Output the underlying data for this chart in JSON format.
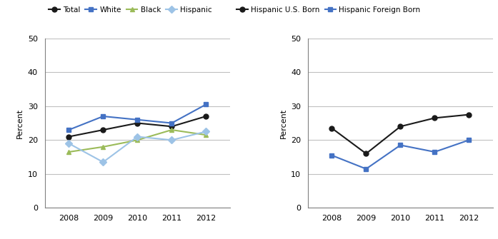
{
  "years": [
    2008,
    2009,
    2010,
    2011,
    2012
  ],
  "left_chart": {
    "Total": [
      21,
      23,
      25,
      24,
      27
    ],
    "White": [
      23,
      27,
      26,
      25,
      30.5
    ],
    "Black": [
      16.5,
      18,
      20,
      23,
      21.5
    ],
    "Hispanic": [
      19,
      13.5,
      21,
      20,
      22.5
    ]
  },
  "right_chart": {
    "Hispanic U.S. Born": [
      23.5,
      16,
      24,
      26.5,
      27.5
    ],
    "Hispanic Foreign Born": [
      15.5,
      11.5,
      18.5,
      16.5,
      20
    ]
  },
  "left_legend": [
    {
      "label": "Total",
      "color": "#1a1a1a",
      "marker": "o"
    },
    {
      "label": "White",
      "color": "#4472c4",
      "marker": "s"
    },
    {
      "label": "Black",
      "color": "#9bbb59",
      "marker": "^"
    },
    {
      "label": "Hispanic",
      "color": "#9dc3e6",
      "marker": "D"
    }
  ],
  "right_legend": [
    {
      "label": "Hispanic U.S. Born",
      "color": "#1a1a1a",
      "marker": "o"
    },
    {
      "label": "Hispanic Foreign Born",
      "color": "#4472c4",
      "marker": "s"
    }
  ],
  "ylabel": "Percent",
  "ylim": [
    0,
    50
  ],
  "yticks": [
    0,
    10,
    20,
    30,
    40,
    50
  ],
  "xticks": [
    2008,
    2009,
    2010,
    2011,
    2012
  ],
  "grid_color": "#c0c0c0",
  "bg_color": "#ffffff",
  "left_series_colors": [
    "#1a1a1a",
    "#4472c4",
    "#9bbb59",
    "#9dc3e6"
  ],
  "left_series_markers": [
    "o",
    "s",
    "^",
    "D"
  ],
  "right_series_colors": [
    "#1a1a1a",
    "#4472c4"
  ],
  "right_series_markers": [
    "o",
    "s"
  ]
}
